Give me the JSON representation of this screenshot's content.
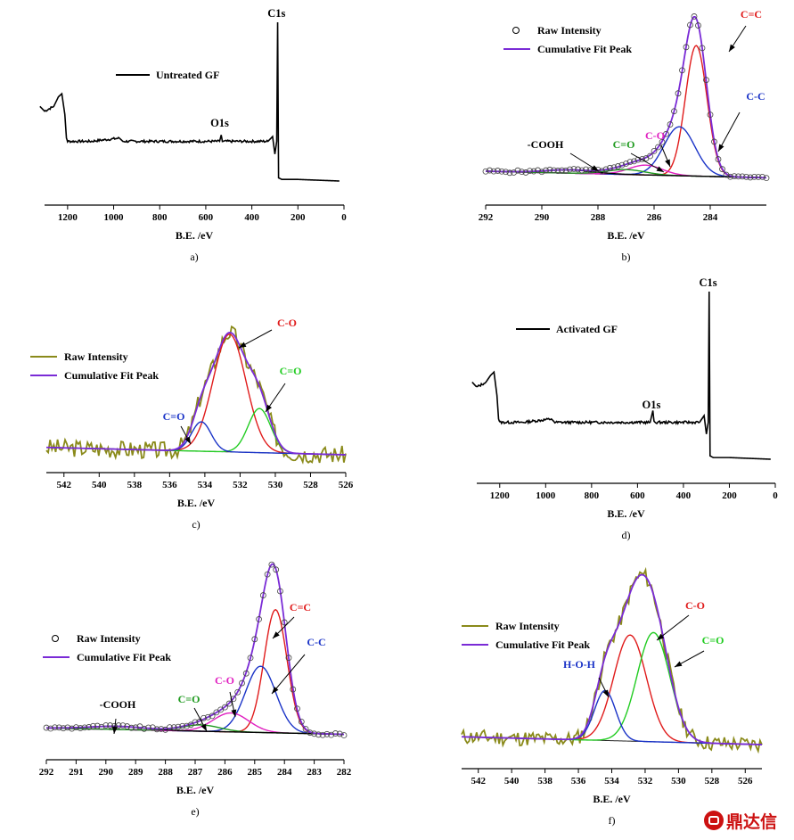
{
  "figure": {
    "watermark": "鼎达信"
  },
  "chart_data": [
    {
      "id": "a",
      "type": "line",
      "caption": "a)",
      "xlabel": "B.E. /eV",
      "xlim": [
        1300,
        0
      ],
      "xticks": [
        1200,
        1000,
        800,
        600,
        400,
        200,
        0
      ],
      "legend": [
        {
          "label": "Untreated  GF",
          "color": "#000000"
        }
      ],
      "annotations": [
        {
          "text": "C1s",
          "x": 285,
          "y": 1.0
        },
        {
          "text": "O1s",
          "x": 532,
          "y": 0.31
        }
      ],
      "series": [
        {
          "name": "Untreated  GF",
          "color": "#000000",
          "points": [
            [
              1320,
              0.47
            ],
            [
              1300,
              0.44
            ],
            [
              1260,
              0.47
            ],
            [
              1240,
              0.53
            ],
            [
              1225,
              0.55
            ],
            [
              1212,
              0.42
            ],
            [
              1205,
              0.27
            ],
            [
              1200,
              0.25
            ],
            [
              1100,
              0.25
            ],
            [
              975,
              0.27
            ],
            [
              960,
              0.25
            ],
            [
              700,
              0.25
            ],
            [
              540,
              0.25
            ],
            [
              533,
              0.29
            ],
            [
              528,
              0.25
            ],
            [
              400,
              0.25
            ],
            [
              330,
              0.25
            ],
            [
              310,
              0.28
            ],
            [
              300,
              0.17
            ],
            [
              292,
              0.25
            ],
            [
              288,
              1.0
            ],
            [
              284,
              0.02
            ],
            [
              270,
              0.01
            ],
            [
              200,
              0.01
            ],
            [
              20,
              0.0
            ]
          ]
        }
      ]
    },
    {
      "id": "b",
      "type": "line",
      "caption": "b)",
      "xlabel": "B.E. /eV",
      "xlim": [
        292,
        282
      ],
      "xticks": [
        292,
        290,
        288,
        286,
        284
      ],
      "legend": [
        {
          "label": "Raw Intensity",
          "marker": "circle",
          "color": "#000000"
        },
        {
          "label": "Cumulative Fit Peak",
          "color": "#7a2bd6"
        }
      ],
      "annotations": [
        {
          "text": "C=C",
          "color": "#e01b1b"
        },
        {
          "text": "C-C",
          "color": "#1a33c7"
        },
        {
          "text": "C-O",
          "color": "#e020c0"
        },
        {
          "text": "C=O",
          "color": "#1f9a1f"
        },
        {
          "text": "-COOH",
          "color": "#000000"
        }
      ],
      "peaks": [
        {
          "name": "C=C",
          "center": 284.5,
          "height": 0.8,
          "fwhm": 0.9,
          "color": "#e01b1b"
        },
        {
          "name": "C-C",
          "center": 285.1,
          "height": 0.3,
          "fwhm": 1.3,
          "color": "#1a33c7"
        },
        {
          "name": "C-O",
          "center": 286.3,
          "height": 0.06,
          "fwhm": 1.4,
          "color": "#e020c0"
        },
        {
          "name": "C=O",
          "center": 287.0,
          "height": 0.03,
          "fwhm": 1.6,
          "color": "#1f9a1f"
        },
        {
          "name": "-COOH",
          "center": 289.0,
          "height": 0.02,
          "fwhm": 2.0,
          "color": "#000000"
        }
      ],
      "baseline": {
        "y_left": 0.06,
        "y_right": 0.02
      }
    },
    {
      "id": "c",
      "type": "line",
      "caption": "c)",
      "xlabel": "B.E. /eV",
      "xlim": [
        543,
        526
      ],
      "xticks": [
        542,
        540,
        538,
        536,
        534,
        532,
        530,
        528,
        526
      ],
      "legend": [
        {
          "label": "Raw Intensity",
          "color": "#8a8a1a"
        },
        {
          "label": "Cumulative Fit Peak",
          "color": "#7a2bd6"
        }
      ],
      "annotations": [
        {
          "text": "C-O",
          "color": "#e01b1b"
        },
        {
          "text": "C=O",
          "color": "#22cc22"
        },
        {
          "text": "C=O",
          "color": "#1a33c7"
        }
      ],
      "peaks": [
        {
          "name": "C-O",
          "center": 532.6,
          "height": 0.8,
          "fwhm": 2.2,
          "color": "#e01b1b"
        },
        {
          "name": "C=O",
          "center": 530.9,
          "height": 0.3,
          "fwhm": 1.5,
          "color": "#22cc22"
        },
        {
          "name": "C=O",
          "center": 534.2,
          "height": 0.2,
          "fwhm": 1.3,
          "color": "#1a33c7"
        }
      ],
      "baseline": {
        "y_left": 0.05,
        "y_right": 0.0
      },
      "noise": 0.06
    },
    {
      "id": "d",
      "type": "line",
      "caption": "d)",
      "xlabel": "B.E. /eV",
      "xlim": [
        1300,
        0
      ],
      "xticks": [
        1200,
        1000,
        800,
        600,
        400,
        200,
        0
      ],
      "legend": [
        {
          "label": "Activated GF",
          "color": "#000000"
        }
      ],
      "annotations": [
        {
          "text": "C1s",
          "x": 285,
          "y": 1.0
        },
        {
          "text": "O1s",
          "x": 532,
          "y": 0.27
        }
      ],
      "series": [
        {
          "name": "Activated GF",
          "color": "#000000",
          "points": [
            [
              1320,
              0.46
            ],
            [
              1300,
              0.43
            ],
            [
              1260,
              0.46
            ],
            [
              1240,
              0.5
            ],
            [
              1225,
              0.52
            ],
            [
              1212,
              0.38
            ],
            [
              1205,
              0.24
            ],
            [
              1200,
              0.22
            ],
            [
              1100,
              0.22
            ],
            [
              975,
              0.24
            ],
            [
              960,
              0.22
            ],
            [
              700,
              0.22
            ],
            [
              545,
              0.22
            ],
            [
              533,
              0.29
            ],
            [
              528,
              0.22
            ],
            [
              400,
              0.22
            ],
            [
              330,
              0.22
            ],
            [
              310,
              0.26
            ],
            [
              300,
              0.15
            ],
            [
              292,
              0.22
            ],
            [
              288,
              1.0
            ],
            [
              284,
              0.02
            ],
            [
              270,
              0.01
            ],
            [
              200,
              0.01
            ],
            [
              20,
              0.0
            ]
          ]
        }
      ]
    },
    {
      "id": "e",
      "type": "line",
      "caption": "e)",
      "xlabel": "B.E. /eV",
      "xlim": [
        292,
        282
      ],
      "xticks": [
        292,
        291,
        290,
        289,
        288,
        287,
        286,
        285,
        284,
        283,
        282
      ],
      "legend": [
        {
          "label": "Raw Intensity",
          "marker": "circle",
          "color": "#000000"
        },
        {
          "label": "Cumulative Fit Peak",
          "color": "#7a2bd6"
        }
      ],
      "annotations": [
        {
          "text": "C=C",
          "color": "#e01b1b"
        },
        {
          "text": "C-C",
          "color": "#1a33c7"
        },
        {
          "text": "C-O",
          "color": "#e020c0"
        },
        {
          "text": "C=O",
          "color": "#1f9a1f"
        },
        {
          "text": "-COOH",
          "color": "#000000"
        }
      ],
      "peaks": [
        {
          "name": "C=C",
          "center": 284.3,
          "height": 0.78,
          "fwhm": 0.9,
          "color": "#e01b1b"
        },
        {
          "name": "C-C",
          "center": 284.8,
          "height": 0.42,
          "fwhm": 1.2,
          "color": "#1a33c7"
        },
        {
          "name": "C-O",
          "center": 285.8,
          "height": 0.12,
          "fwhm": 1.4,
          "color": "#e020c0"
        },
        {
          "name": "C=O",
          "center": 286.8,
          "height": 0.04,
          "fwhm": 1.5,
          "color": "#1f9a1f"
        },
        {
          "name": "-COOH",
          "center": 289.6,
          "height": 0.02,
          "fwhm": 2.2,
          "color": "#000000"
        }
      ],
      "baseline": {
        "y_left": 0.06,
        "y_right": 0.02
      }
    },
    {
      "id": "f",
      "type": "line",
      "caption": "f)",
      "xlabel": "B.E. /eV",
      "xlim": [
        543,
        525
      ],
      "xticks": [
        542,
        540,
        538,
        536,
        534,
        532,
        530,
        528,
        526
      ],
      "legend": [
        {
          "label": "Raw Intensity",
          "color": "#8a8a1a"
        },
        {
          "label": "Cumulative Fit Peak",
          "color": "#7a2bd6"
        }
      ],
      "annotations": [
        {
          "text": "C-O",
          "color": "#e01b1b"
        },
        {
          "text": "C=O",
          "color": "#22cc22"
        },
        {
          "text": "H-O-H",
          "color": "#1a33c7"
        }
      ],
      "peaks": [
        {
          "name": "C-O",
          "center": 532.9,
          "height": 0.68,
          "fwhm": 2.3,
          "color": "#e01b1b"
        },
        {
          "name": "C=O",
          "center": 531.5,
          "height": 0.7,
          "fwhm": 2.3,
          "color": "#22cc22"
        },
        {
          "name": "H-O-H",
          "center": 534.4,
          "height": 0.32,
          "fwhm": 1.5,
          "color": "#1a33c7"
        }
      ],
      "baseline": {
        "y_left": 0.05,
        "y_right": 0.0
      },
      "noise": 0.05
    }
  ]
}
